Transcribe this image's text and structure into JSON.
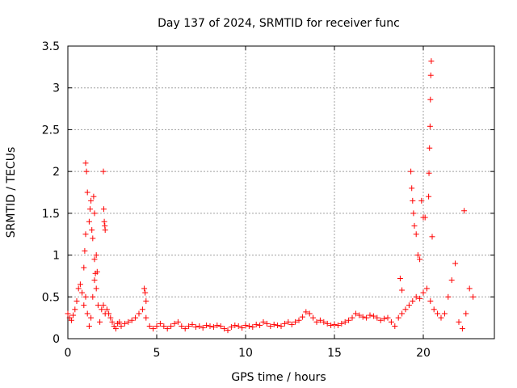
{
  "chart_data": {
    "type": "scatter",
    "title": "Day 137 of 2024, SRMTID for receiver func",
    "xlabel": "GPS time / hours",
    "ylabel": "SRMTID / TECUs",
    "xlim": [
      0,
      24
    ],
    "ylim": [
      0,
      3.5
    ],
    "xticks": [
      0,
      5,
      10,
      15,
      20
    ],
    "yticks": [
      0,
      0.5,
      1,
      1.5,
      2,
      2.5,
      3,
      3.5
    ],
    "xtick_labels": [
      "0",
      "5",
      "10",
      "15",
      "20"
    ],
    "ytick_labels": [
      "0",
      "0.5",
      "1",
      "1.5",
      "2",
      "2.5",
      "3",
      "3.5"
    ],
    "grid": true,
    "marker": "+",
    "color": "#ff0000",
    "series": [
      {
        "name": "SRMTID",
        "x": [
          0.0,
          0.1,
          0.2,
          0.3,
          0.4,
          0.5,
          0.6,
          0.7,
          0.8,
          0.9,
          1.0,
          1.1,
          1.2,
          1.3,
          1.4,
          1.5,
          1.6,
          1.7,
          1.8,
          1.9,
          2.0,
          2.1,
          2.2,
          2.3,
          2.4,
          2.5,
          2.6,
          2.7,
          2.8,
          2.9,
          3.0,
          3.2,
          3.4,
          3.6,
          3.8,
          4.0,
          4.2,
          4.4,
          4.6,
          4.8,
          5.0,
          5.2,
          5.4,
          5.6,
          5.8,
          6.0,
          6.2,
          6.4,
          6.6,
          6.8,
          7.0,
          7.2,
          7.4,
          7.6,
          7.8,
          8.0,
          8.2,
          8.4,
          8.6,
          8.8,
          9.0,
          9.2,
          9.4,
          9.6,
          9.8,
          10.0,
          10.2,
          10.4,
          10.6,
          10.8,
          11.0,
          11.2,
          11.4,
          11.6,
          11.8,
          12.0,
          12.2,
          12.4,
          12.6,
          12.8,
          13.0,
          13.2,
          13.4,
          13.6,
          13.8,
          14.0,
          14.2,
          14.4,
          14.6,
          14.8,
          15.0,
          15.2,
          15.4,
          15.6,
          15.8,
          16.0,
          16.2,
          16.4,
          16.6,
          16.8,
          17.0,
          17.2,
          17.4,
          17.6,
          17.8,
          18.0,
          18.2,
          18.4,
          18.6,
          18.8,
          19.0,
          19.2,
          19.4,
          19.6,
          19.8,
          20.0,
          20.2,
          20.4,
          20.6,
          20.8,
          21.0,
          21.2,
          21.4,
          21.6,
          21.8,
          22.0,
          22.2,
          22.4,
          22.6,
          22.8,
          0.9,
          0.95,
          1.0,
          1.0,
          1.05,
          1.1,
          1.2,
          1.25,
          1.3,
          1.35,
          1.4,
          1.5,
          1.55,
          2.0,
          2.02,
          2.05,
          2.08,
          2.1,
          1.45,
          1.5,
          1.6,
          1.65,
          4.3,
          4.35,
          4.4,
          19.3,
          19.35,
          19.4,
          19.45,
          19.5,
          19.6,
          19.7,
          19.8,
          20.0,
          20.3,
          20.32,
          20.35,
          20.38,
          20.4,
          20.42,
          20.45,
          20.5,
          22.3,
          18.7,
          18.8,
          19.9,
          20.1
        ],
        "y": [
          0.3,
          0.25,
          0.22,
          0.28,
          0.35,
          0.45,
          0.6,
          0.65,
          0.55,
          0.4,
          0.5,
          0.3,
          0.15,
          0.25,
          0.5,
          0.7,
          0.6,
          0.4,
          0.2,
          0.35,
          0.4,
          0.3,
          0.35,
          0.3,
          0.25,
          0.2,
          0.15,
          0.12,
          0.18,
          0.2,
          0.15,
          0.18,
          0.2,
          0.22,
          0.25,
          0.3,
          0.35,
          0.25,
          0.15,
          0.12,
          0.15,
          0.18,
          0.15,
          0.12,
          0.15,
          0.18,
          0.2,
          0.15,
          0.12,
          0.15,
          0.17,
          0.14,
          0.15,
          0.13,
          0.16,
          0.15,
          0.14,
          0.16,
          0.15,
          0.12,
          0.1,
          0.14,
          0.16,
          0.15,
          0.13,
          0.16,
          0.15,
          0.14,
          0.17,
          0.16,
          0.2,
          0.18,
          0.15,
          0.17,
          0.16,
          0.15,
          0.18,
          0.2,
          0.17,
          0.2,
          0.22,
          0.26,
          0.32,
          0.3,
          0.25,
          0.2,
          0.22,
          0.2,
          0.18,
          0.16,
          0.17,
          0.16,
          0.18,
          0.2,
          0.22,
          0.25,
          0.3,
          0.28,
          0.26,
          0.25,
          0.28,
          0.27,
          0.25,
          0.22,
          0.24,
          0.25,
          0.2,
          0.15,
          0.25,
          0.3,
          0.35,
          0.4,
          0.45,
          0.5,
          0.48,
          0.55,
          0.6,
          0.45,
          0.35,
          0.3,
          0.25,
          0.3,
          0.5,
          0.7,
          0.9,
          0.2,
          0.12,
          0.3,
          0.6,
          0.5,
          0.85,
          1.05,
          1.25,
          2.1,
          2.0,
          1.75,
          1.4,
          1.55,
          1.65,
          1.3,
          1.2,
          0.95,
          0.78,
          2.0,
          1.55,
          1.4,
          1.35,
          1.3,
          1.7,
          1.5,
          1.0,
          0.8,
          0.6,
          0.55,
          0.45,
          2.0,
          1.8,
          1.65,
          1.5,
          1.35,
          1.25,
          1.0,
          0.95,
          1.45,
          1.7,
          1.98,
          2.28,
          2.54,
          2.86,
          3.15,
          3.32,
          1.22,
          1.53,
          0.72,
          0.58,
          1.65,
          1.45
        ]
      }
    ]
  }
}
